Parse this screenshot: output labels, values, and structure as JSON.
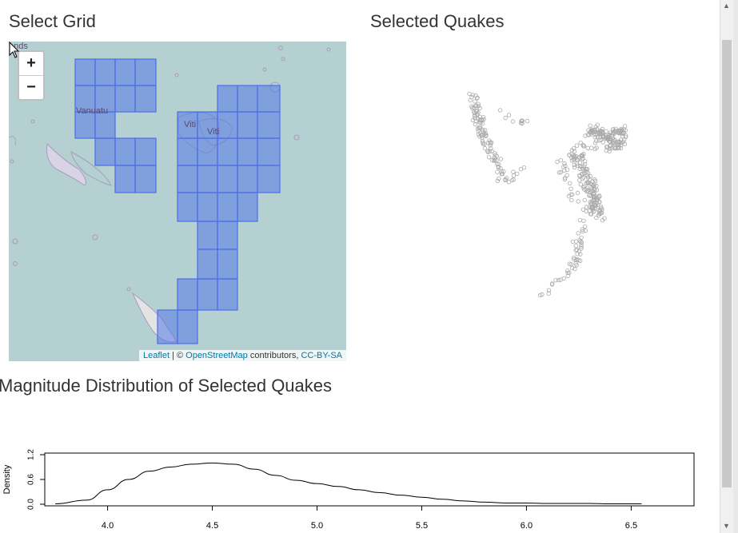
{
  "headings": {
    "select_grid": "Select Grid",
    "selected_quakes": "Selected Quakes",
    "magnitude": "Magnitude Distribution of Selected Quakes"
  },
  "map": {
    "zoom_in": "+",
    "zoom_out": "−",
    "labels": {
      "corner": "ands",
      "vanuatu": "Vanuatu",
      "viti1": "Viti",
      "viti2": "Viti"
    },
    "attribution": {
      "leaflet": "Leaflet",
      "sep": " | © ",
      "osm": "OpenStreetMap",
      "contrib": " contributors, ",
      "license": "CC-BY-SA"
    }
  },
  "chart_data": {
    "type": "line",
    "title": "",
    "xlabel": "",
    "ylabel": "Density",
    "xlim": [
      3.7,
      6.8
    ],
    "ylim": [
      0,
      1.2
    ],
    "x_ticks": [
      "4.0",
      "4.5",
      "5.0",
      "5.5",
      "6.0",
      "6.5"
    ],
    "y_ticks": [
      "0.0",
      "0.6",
      "1.2"
    ],
    "x": [
      3.75,
      3.9,
      4.0,
      4.1,
      4.2,
      4.3,
      4.4,
      4.5,
      4.6,
      4.7,
      4.8,
      4.9,
      5.0,
      5.1,
      5.2,
      5.3,
      5.4,
      5.5,
      5.6,
      5.7,
      5.8,
      5.9,
      6.0,
      6.1,
      6.2,
      6.3,
      6.4,
      6.55
    ],
    "y": [
      0.01,
      0.1,
      0.35,
      0.6,
      0.8,
      0.9,
      0.97,
      1.0,
      0.97,
      0.85,
      0.7,
      0.58,
      0.5,
      0.43,
      0.35,
      0.28,
      0.22,
      0.17,
      0.12,
      0.08,
      0.05,
      0.03,
      0.03,
      0.02,
      0.02,
      0.02,
      0.01,
      0.01
    ]
  }
}
